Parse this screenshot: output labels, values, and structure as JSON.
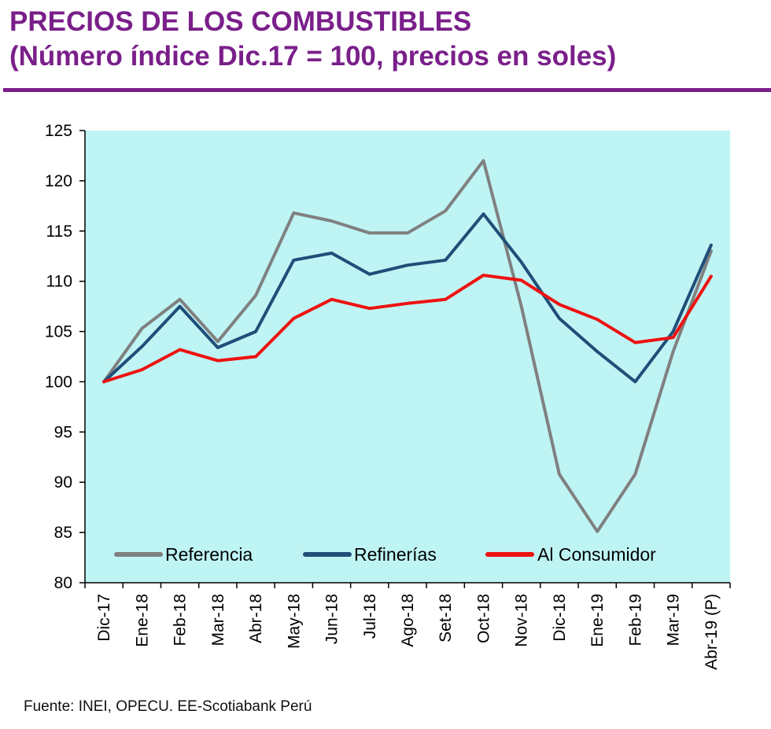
{
  "header": {
    "title_line1": "PRECIOS DE LOS COMBUSTIBLES",
    "title_line2": "(Número índice Dic.17 = 100, precios en soles)"
  },
  "colors": {
    "title": "#7a1f8a",
    "plot_background": "#bff4f4",
    "referencia": "#808080",
    "refinerias": "#1f4e79",
    "consumidor": "#ee1111"
  },
  "chart_data": {
    "type": "line",
    "categories": [
      "Dic-17",
      "Ene-18",
      "Feb-18",
      "Mar-18",
      "Abr-18",
      "May-18",
      "Jun-18",
      "Jul-18",
      "Ago-18",
      "Set-18",
      "Oct-18",
      "Nov-18",
      "Dic-18",
      "Ene-19",
      "Feb-19",
      "Mar-19",
      "Abr-19 (P)"
    ],
    "series": [
      {
        "name": "Referencia",
        "color": "#808080",
        "values": [
          100,
          105.3,
          108.2,
          104.0,
          108.6,
          116.8,
          116.0,
          114.8,
          114.8,
          117.0,
          122.0,
          107.5,
          90.8,
          85.1,
          90.8,
          103.0,
          113.0
        ]
      },
      {
        "name": "Refinerías",
        "color": "#1f4e79",
        "values": [
          100,
          103.5,
          107.5,
          103.4,
          105.0,
          112.1,
          112.8,
          110.7,
          111.6,
          112.1,
          116.7,
          111.9,
          106.3,
          103.0,
          100.0,
          105.0,
          113.6
        ]
      },
      {
        "name": "Al Consumidor",
        "color": "#ee1111",
        "values": [
          100,
          101.2,
          103.2,
          102.1,
          102.5,
          106.3,
          108.2,
          107.3,
          107.8,
          108.2,
          110.6,
          110.1,
          107.7,
          106.2,
          103.9,
          104.4,
          110.5
        ]
      }
    ],
    "yticks": [
      80,
      85,
      90,
      95,
      100,
      105,
      110,
      115,
      120,
      125
    ],
    "ylim": [
      80,
      125
    ],
    "title": "PRECIOS DE LOS COMBUSTIBLES",
    "xlabel": "",
    "ylabel": "",
    "grid": false,
    "legend_position": "bottom-inside"
  },
  "footer": {
    "source": "Fuente: INEI,  OPECU.  EE-Scotiabank Perú"
  }
}
